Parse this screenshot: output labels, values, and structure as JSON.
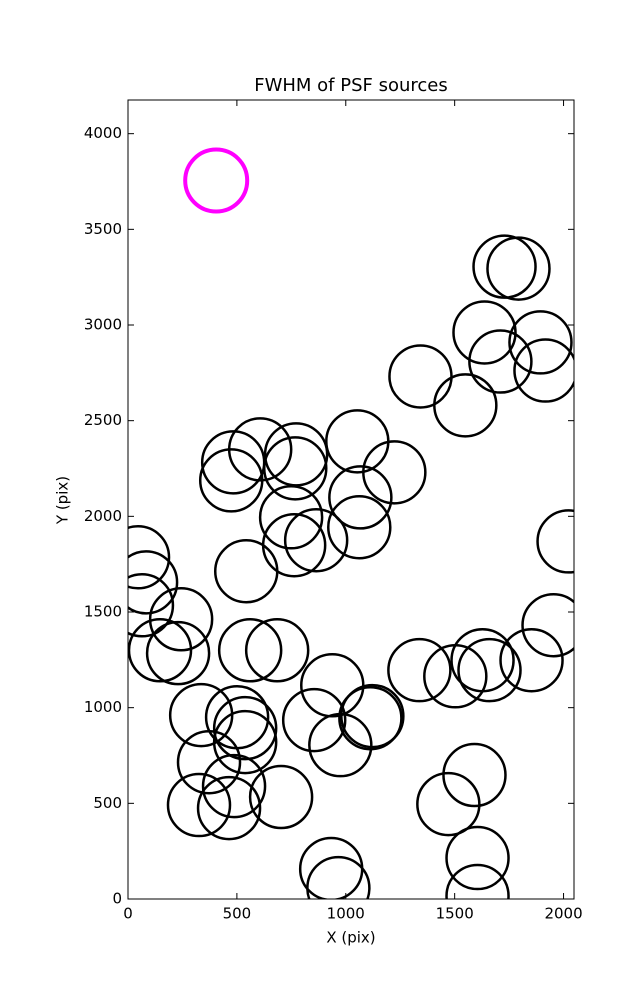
{
  "chart_data": {
    "type": "scatter",
    "title": "FWHM of PSF sources",
    "xlabel": "X (pix)",
    "ylabel": "Y (pix)",
    "xlim": [
      0,
      2048
    ],
    "ylim": [
      0,
      4176
    ],
    "xticks": [
      0,
      500,
      1000,
      1500,
      2000
    ],
    "yticks": [
      0,
      500,
      1000,
      1500,
      2000,
      2500,
      3000,
      3500,
      4000
    ],
    "series": [
      {
        "color": "#000000",
        "x": [
          1729,
          1793,
          1637,
          1894,
          1710,
          1917,
          1343,
          1549,
          1053,
          607,
          772,
          483,
          768,
          1223,
          474,
          1067,
          749,
          1062,
          864,
          763,
          2023,
          46,
          83,
          543,
          64,
          244,
          1954,
          147,
          230,
          561,
          685,
          1628,
          1853,
          1338,
          1660,
          1503,
          938,
          336,
          501,
          855,
          1122,
          1113,
          538,
          538,
          975,
          372,
          487,
          1591,
          703,
          326,
          1471,
          464,
          1605,
          933,
          966,
          1605
        ],
        "values": [
          3305,
          3295,
          2961,
          2909,
          2809,
          2762,
          2731,
          2580,
          2392,
          2350,
          2324,
          2282,
          2251,
          2230,
          2188,
          2099,
          1995,
          1943,
          1875,
          1849,
          1869,
          1786,
          1655,
          1713,
          1535,
          1462,
          1431,
          1300,
          1285,
          1300,
          1300,
          1248,
          1248,
          1196,
          1196,
          1164,
          1117,
          961,
          950,
          935,
          956,
          945,
          893,
          820,
          804,
          715,
          590,
          648,
          533,
          491,
          496,
          475,
          214,
          157,
          57,
          16
        ]
      },
      {
        "color": "#ff00ff",
        "x": [
          405
        ],
        "values": [
          3755
        ]
      }
    ]
  }
}
